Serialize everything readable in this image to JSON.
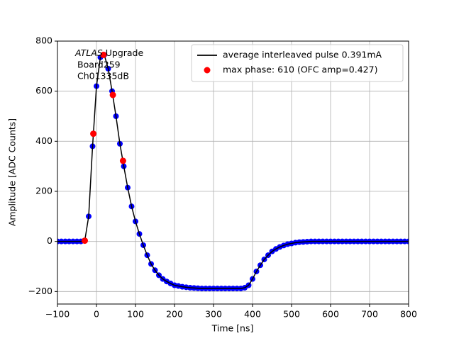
{
  "chart_data": {
    "type": "line",
    "x_label": "Time [ns]",
    "y_label": "Amplitude [ADC Counts]",
    "annotation": {
      "atlas": "ATLAS",
      "upgrade": "Upgrade",
      "board": "Board259",
      "channel": "Ch01335dB"
    },
    "xlim": [
      -100,
      800
    ],
    "ylim": [
      -250,
      800
    ],
    "xticks": [
      {
        "value": -100,
        "label": "−100"
      },
      0,
      100,
      200,
      300,
      400,
      500,
      600,
      700,
      800
    ],
    "yticks": [
      {
        "value": -200,
        "label": "−200"
      },
      0,
      200,
      400,
      600,
      800
    ],
    "grid": true,
    "legend_position": "upper right",
    "x": [
      -100,
      -90,
      -80,
      -70,
      -60,
      -50,
      -40,
      -30,
      -20,
      -10,
      0,
      10,
      20,
      30,
      40,
      50,
      60,
      70,
      80,
      90,
      100,
      110,
      120,
      130,
      140,
      150,
      160,
      170,
      180,
      190,
      200,
      210,
      220,
      230,
      240,
      250,
      260,
      270,
      280,
      290,
      300,
      310,
      320,
      330,
      340,
      350,
      360,
      370,
      380,
      390,
      400,
      410,
      420,
      430,
      440,
      450,
      460,
      470,
      480,
      490,
      500,
      510,
      520,
      530,
      540,
      550,
      560,
      570,
      580,
      590,
      600,
      610,
      620,
      630,
      640,
      650,
      660,
      670,
      680,
      690,
      700,
      710,
      720,
      730,
      740,
      750,
      760,
      770,
      780,
      790,
      800
    ],
    "series": [
      {
        "style": "dots",
        "color": "#0000ff",
        "values": [
          0,
          0,
          0,
          0,
          0,
          0,
          0,
          3,
          100,
          380,
          620,
          735,
          745,
          690,
          600,
          500,
          390,
          300,
          215,
          140,
          80,
          30,
          -15,
          -55,
          -90,
          -115,
          -135,
          -150,
          -160,
          -168,
          -175,
          -178,
          -181,
          -183,
          -185,
          -186,
          -187,
          -188,
          -188,
          -188,
          -188,
          -188,
          -188,
          -188,
          -188,
          -188,
          -188,
          -188,
          -185,
          -175,
          -150,
          -120,
          -95,
          -72,
          -55,
          -40,
          -30,
          -22,
          -16,
          -11,
          -8,
          -5,
          -3,
          -2,
          -1,
          0,
          0,
          0,
          0,
          0,
          0,
          0,
          0,
          0,
          0,
          0,
          0,
          0,
          0,
          0,
          0,
          0,
          0,
          0,
          0,
          0,
          0,
          0,
          0,
          0,
          0
        ]
      },
      {
        "style": "line",
        "name": "average interleaved pulse 0.391mA",
        "color": "#000000",
        "values": [
          0,
          0,
          0,
          0,
          0,
          0,
          0,
          3,
          100,
          380,
          620,
          735,
          745,
          690,
          600,
          500,
          390,
          300,
          215,
          140,
          80,
          30,
          -15,
          -55,
          -90,
          -115,
          -135,
          -150,
          -160,
          -168,
          -175,
          -178,
          -181,
          -183,
          -185,
          -186,
          -187,
          -188,
          -188,
          -188,
          -188,
          -188,
          -188,
          -188,
          -188,
          -188,
          -188,
          -188,
          -185,
          -175,
          -150,
          -120,
          -95,
          -72,
          -55,
          -40,
          -30,
          -22,
          -16,
          -11,
          -8,
          -5,
          -3,
          -2,
          -1,
          0,
          0,
          0,
          0,
          0,
          0,
          0,
          0,
          0,
          0,
          0,
          0,
          0,
          0,
          0,
          0,
          0,
          0,
          0,
          0,
          0,
          0,
          0,
          0,
          0,
          0
        ]
      },
      {
        "style": "markers",
        "name": "max phase: 610 (OFC amp=0.427)",
        "color": "#ff0000",
        "x": [
          -30,
          -8,
          18,
          42,
          68
        ],
        "values": [
          3,
          430,
          745,
          585,
          322
        ]
      }
    ]
  }
}
